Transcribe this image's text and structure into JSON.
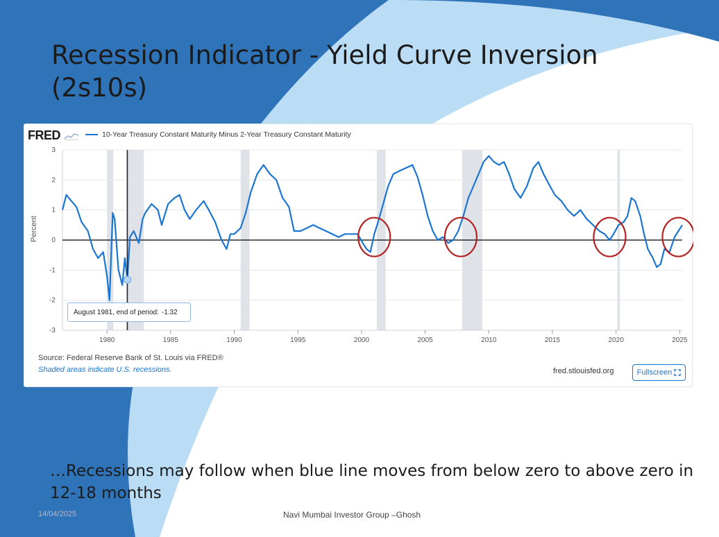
{
  "slide": {
    "title": "Recession Indicator - Yield Curve Inversion (2s10s)",
    "note": "…Recessions may follow when blue line moves from below zero to above zero in 12-18 months",
    "footer_date": "14/04/2025",
    "footer_center": "Navi Mumbai Investor Group –Ghosh"
  },
  "chart_header": {
    "logo": "FRED",
    "logo_icon": "line-chart-icon"
  },
  "chart_footer": {
    "source": "Source: Federal Reserve Bank of St. Louis via FRED®",
    "shaded_note": "Shaded areas indicate U.S. recessions.",
    "url": "fred.stlouisfed.org",
    "fullscreen_label": "Fullscreen",
    "fullscreen_icon": "expand-icon"
  },
  "tooltip": {
    "text": "August 1981, end of period:",
    "value": "-1.32"
  },
  "colors": {
    "series": "#1a75d2",
    "recession": "#dfe3e8",
    "annotation_circle": "#b22222",
    "slide_blue": "#2f74b9"
  },
  "chart_data": {
    "type": "line",
    "title": "",
    "xlabel": "",
    "ylabel": "Percent",
    "xlim": [
      1976.5,
      2025.2
    ],
    "ylim": [
      -3,
      3
    ],
    "grid": true,
    "legend_position": "top-left",
    "xticks": [
      1980,
      1985,
      1990,
      1995,
      2000,
      2005,
      2010,
      2015,
      2020,
      2025
    ],
    "yticks": [
      -3,
      -2,
      -1,
      0,
      1,
      2,
      3
    ],
    "recessions": [
      [
        1980.0,
        1980.5
      ],
      [
        1981.5,
        1982.9
      ],
      [
        1990.5,
        1991.2
      ],
      [
        2001.2,
        2001.9
      ],
      [
        2007.9,
        2009.5
      ],
      [
        2020.1,
        2020.3
      ]
    ],
    "annotation_circles_years": [
      2001.0,
      2007.8,
      2019.5,
      2024.9
    ],
    "series": [
      {
        "name": "10-Year Treasury Constant Maturity Minus 2-Year Treasury Constant Maturity",
        "points": [
          [
            1976.5,
            1.0
          ],
          [
            1976.8,
            1.5
          ],
          [
            1977.2,
            1.3
          ],
          [
            1977.6,
            1.1
          ],
          [
            1978.0,
            0.6
          ],
          [
            1978.5,
            0.3
          ],
          [
            1978.9,
            -0.3
          ],
          [
            1979.3,
            -0.6
          ],
          [
            1979.7,
            -0.4
          ],
          [
            1980.0,
            -1.2
          ],
          [
            1980.2,
            -2.0
          ],
          [
            1980.45,
            0.9
          ],
          [
            1980.6,
            0.7
          ],
          [
            1980.9,
            -1.0
          ],
          [
            1981.2,
            -1.5
          ],
          [
            1981.4,
            -0.6
          ],
          [
            1981.6,
            -1.32
          ],
          [
            1981.8,
            0.1
          ],
          [
            1982.1,
            0.3
          ],
          [
            1982.5,
            -0.1
          ],
          [
            1982.8,
            0.7
          ],
          [
            1983.0,
            0.9
          ],
          [
            1983.5,
            1.2
          ],
          [
            1984.0,
            1.0
          ],
          [
            1984.3,
            0.5
          ],
          [
            1984.8,
            1.2
          ],
          [
            1985.3,
            1.4
          ],
          [
            1985.7,
            1.5
          ],
          [
            1986.1,
            1.0
          ],
          [
            1986.5,
            0.7
          ],
          [
            1987.0,
            1.0
          ],
          [
            1987.6,
            1.3
          ],
          [
            1988.0,
            1.0
          ],
          [
            1988.5,
            0.6
          ],
          [
            1989.0,
            0.0
          ],
          [
            1989.4,
            -0.3
          ],
          [
            1989.7,
            0.2
          ],
          [
            1990.0,
            0.2
          ],
          [
            1990.5,
            0.4
          ],
          [
            1990.9,
            0.9
          ],
          [
            1991.3,
            1.6
          ],
          [
            1991.8,
            2.2
          ],
          [
            1992.3,
            2.5
          ],
          [
            1992.8,
            2.2
          ],
          [
            1993.3,
            2.0
          ],
          [
            1993.8,
            1.4
          ],
          [
            1994.3,
            1.1
          ],
          [
            1994.7,
            0.3
          ],
          [
            1995.2,
            0.3
          ],
          [
            1995.7,
            0.4
          ],
          [
            1996.2,
            0.5
          ],
          [
            1996.7,
            0.4
          ],
          [
            1997.2,
            0.3
          ],
          [
            1997.7,
            0.2
          ],
          [
            1998.2,
            0.1
          ],
          [
            1998.7,
            0.2
          ],
          [
            1999.2,
            0.2
          ],
          [
            1999.7,
            0.2
          ],
          [
            2000.1,
            -0.1
          ],
          [
            2000.4,
            -0.3
          ],
          [
            2000.7,
            -0.4
          ],
          [
            2001.0,
            0.2
          ],
          [
            2001.3,
            0.6
          ],
          [
            2001.7,
            1.2
          ],
          [
            2002.1,
            1.8
          ],
          [
            2002.5,
            2.2
          ],
          [
            2003.0,
            2.3
          ],
          [
            2003.5,
            2.4
          ],
          [
            2004.0,
            2.5
          ],
          [
            2004.4,
            2.1
          ],
          [
            2004.8,
            1.5
          ],
          [
            2005.2,
            0.8
          ],
          [
            2005.6,
            0.3
          ],
          [
            2006.0,
            0.0
          ],
          [
            2006.4,
            0.1
          ],
          [
            2006.8,
            -0.1
          ],
          [
            2007.2,
            0.0
          ],
          [
            2007.6,
            0.3
          ],
          [
            2008.0,
            0.8
          ],
          [
            2008.4,
            1.4
          ],
          [
            2008.8,
            1.8
          ],
          [
            2009.2,
            2.2
          ],
          [
            2009.6,
            2.6
          ],
          [
            2010.0,
            2.8
          ],
          [
            2010.4,
            2.6
          ],
          [
            2010.8,
            2.5
          ],
          [
            2011.2,
            2.6
          ],
          [
            2011.6,
            2.2
          ],
          [
            2012.0,
            1.7
          ],
          [
            2012.5,
            1.4
          ],
          [
            2013.0,
            1.8
          ],
          [
            2013.5,
            2.4
          ],
          [
            2013.9,
            2.6
          ],
          [
            2014.3,
            2.2
          ],
          [
            2014.8,
            1.8
          ],
          [
            2015.2,
            1.5
          ],
          [
            2015.7,
            1.3
          ],
          [
            2016.2,
            1.0
          ],
          [
            2016.7,
            0.8
          ],
          [
            2017.2,
            1.0
          ],
          [
            2017.7,
            0.7
          ],
          [
            2018.2,
            0.5
          ],
          [
            2018.7,
            0.3
          ],
          [
            2019.1,
            0.2
          ],
          [
            2019.5,
            0.0
          ],
          [
            2019.8,
            0.2
          ],
          [
            2020.2,
            0.5
          ],
          [
            2020.6,
            0.6
          ],
          [
            2020.9,
            0.8
          ],
          [
            2021.2,
            1.4
          ],
          [
            2021.5,
            1.3
          ],
          [
            2021.9,
            0.8
          ],
          [
            2022.2,
            0.2
          ],
          [
            2022.5,
            -0.3
          ],
          [
            2022.9,
            -0.6
          ],
          [
            2023.2,
            -0.9
          ],
          [
            2023.5,
            -0.8
          ],
          [
            2023.8,
            -0.3
          ],
          [
            2024.2,
            -0.4
          ],
          [
            2024.6,
            0.1
          ],
          [
            2024.9,
            0.3
          ],
          [
            2025.2,
            0.5
          ]
        ]
      }
    ]
  }
}
